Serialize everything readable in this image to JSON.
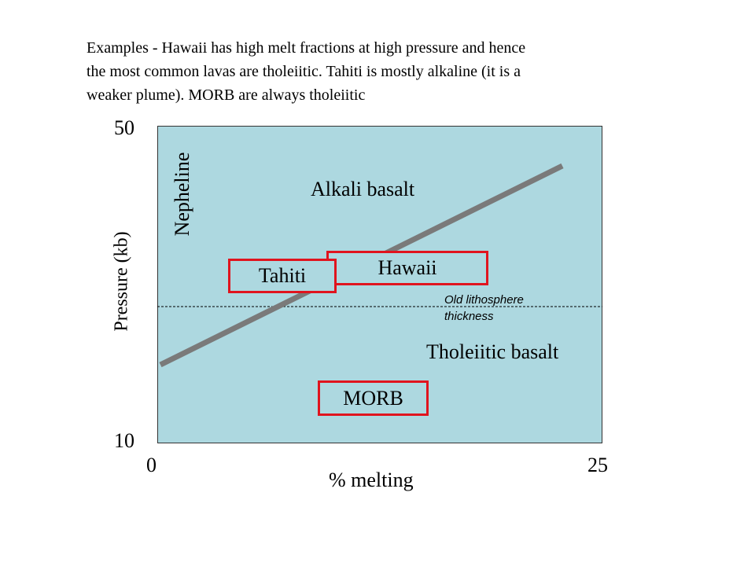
{
  "caption": {
    "line1": "Examples - Hawaii has high melt fractions at high pressure and hence",
    "line2": "the most common lavas are tholeiitic.  Tahiti is mostly alkaline (it is a",
    "line3": "weaker plume).  MORB are always tholeiitic"
  },
  "axes": {
    "y_label": "Pressure (kb)",
    "x_label": "% melting",
    "y_top": "50",
    "y_bottom": "10",
    "x_left": "0",
    "x_right": "25"
  },
  "regions": {
    "nephelinite": "Nepheline",
    "alkali": "Alkali basalt",
    "tholeiitic": "Tholeiitic basalt"
  },
  "boxes": {
    "hawaii": "Hawaii",
    "tahiti": "Tahiti",
    "morb": "MORB"
  },
  "annotation": {
    "line1": "Old lithosphere",
    "line2": "thickness"
  },
  "colors": {
    "plot_background": "#add8e0",
    "box_border": "#e0141e",
    "boundary_line": "#7a7a7a"
  }
}
